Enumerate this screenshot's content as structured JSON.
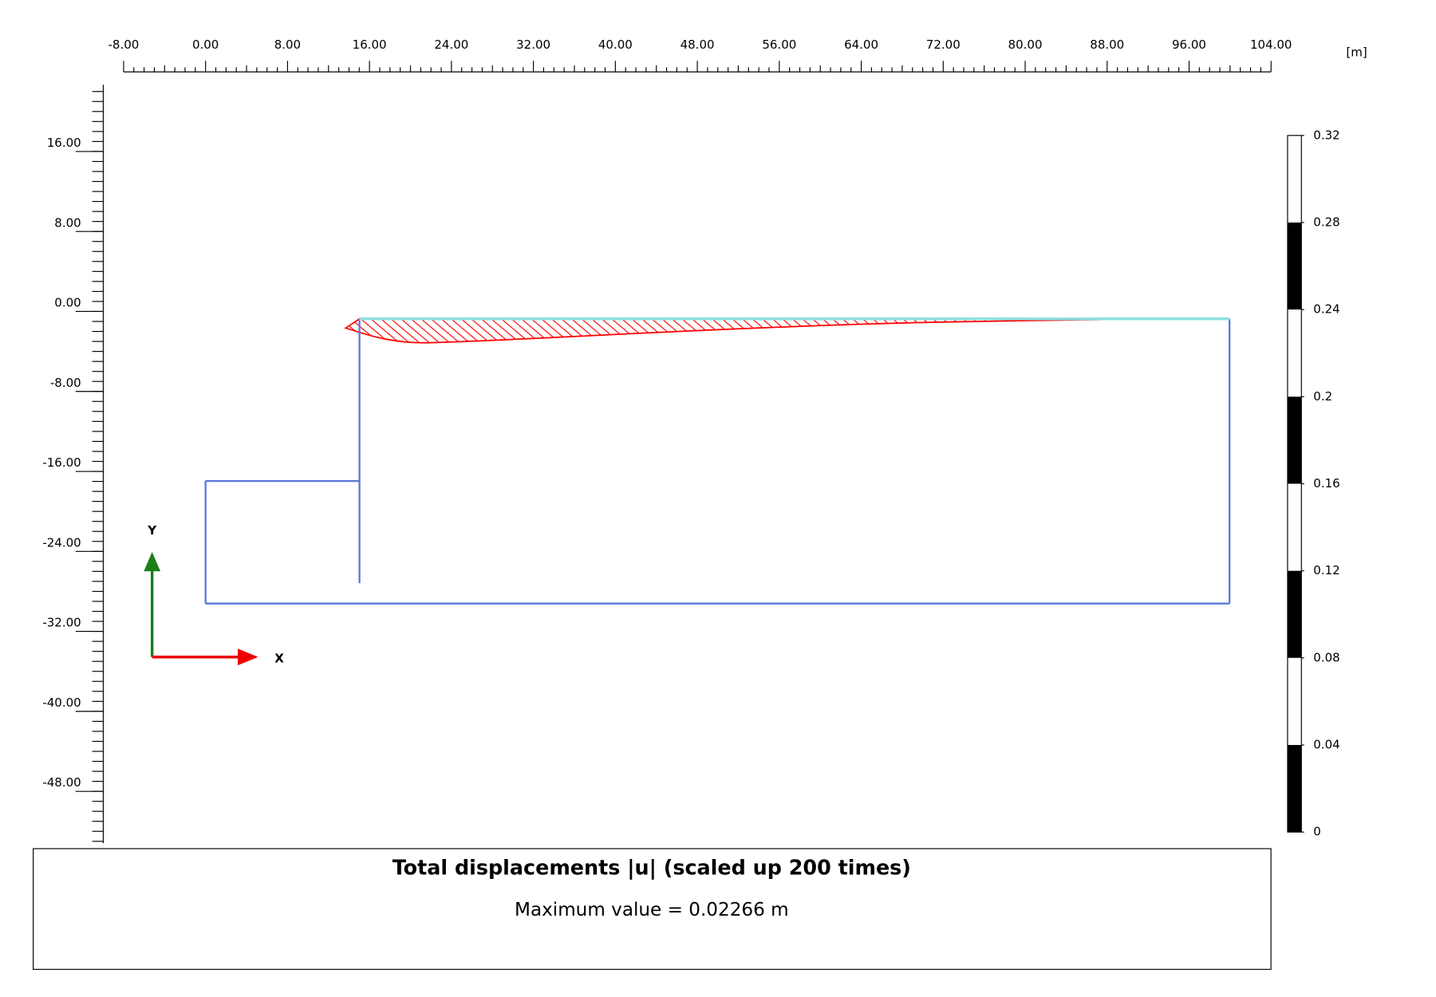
{
  "x_axis": {
    "unit": "[m]",
    "ticks": [
      {
        "value": -8,
        "label": "-8.00"
      },
      {
        "value": 0,
        "label": "0.00"
      },
      {
        "value": 8,
        "label": "8.00"
      },
      {
        "value": 16,
        "label": "16.00"
      },
      {
        "value": 24,
        "label": "24.00"
      },
      {
        "value": 32,
        "label": "32.00"
      },
      {
        "value": 40,
        "label": "40.00"
      },
      {
        "value": 48,
        "label": "48.00"
      },
      {
        "value": 56,
        "label": "56.00"
      },
      {
        "value": 64,
        "label": "64.00"
      },
      {
        "value": 72,
        "label": "72.00"
      },
      {
        "value": 80,
        "label": "80.00"
      },
      {
        "value": 88,
        "label": "88.00"
      },
      {
        "value": 96,
        "label": "96.00"
      },
      {
        "value": 104,
        "label": "104.00"
      }
    ]
  },
  "y_axis": {
    "ticks": [
      {
        "value": 16,
        "label": "16.00"
      },
      {
        "value": 8,
        "label": "8.00"
      },
      {
        "value": 0,
        "label": "0.00"
      },
      {
        "value": -8,
        "label": "-8.00"
      },
      {
        "value": -16,
        "label": "-16.00"
      },
      {
        "value": -24,
        "label": "-24.00"
      },
      {
        "value": -32,
        "label": "-32.00"
      },
      {
        "value": -40,
        "label": "-40.00"
      },
      {
        "value": -48,
        "label": "-48.00"
      }
    ]
  },
  "legend": {
    "ticks": [
      0.32,
      0.28,
      0.24,
      0.2,
      0.16,
      0.12,
      0.08,
      0.04,
      0
    ],
    "colors": [
      "#ffffff",
      "#000000",
      "#ffffff",
      "#000000",
      "#ffffff",
      "#000000",
      "#ffffff",
      "#000000"
    ]
  },
  "axes_glyph": {
    "x": "X",
    "y": "Y"
  },
  "caption": {
    "title": "Total displacements |u| (scaled up 200 times)",
    "subtitle": "Maximum value = 0.02266 m"
  }
}
